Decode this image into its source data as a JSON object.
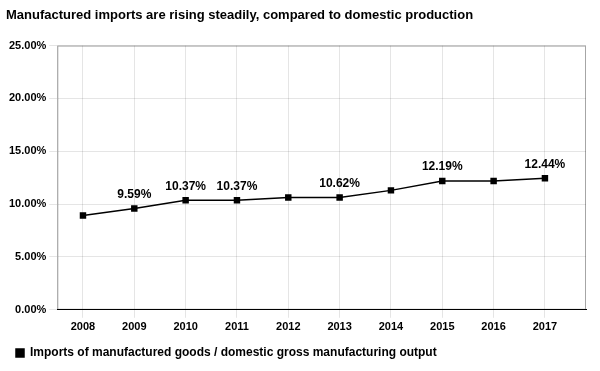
{
  "chart_data": {
    "type": "line",
    "title": "Manufactured imports are rising steadily, compared to domestic production",
    "x": [
      2008,
      2009,
      2010,
      2011,
      2012,
      2013,
      2014,
      2015,
      2016,
      2017
    ],
    "series": [
      {
        "name": "Imports of manufactured goods / domestic gross manufacturing output",
        "color": "#000000",
        "marker": "square",
        "values": [
          0.0893,
          0.0959,
          0.1037,
          0.1037,
          0.1062,
          0.1062,
          0.113,
          0.1219,
          0.1219,
          0.1244
        ]
      }
    ],
    "annotations": [
      {
        "x": 2009,
        "y": 0.0959,
        "label": "9.59%"
      },
      {
        "x": 2010,
        "y": 0.1037,
        "label": "10.37%"
      },
      {
        "x": 2011,
        "y": 0.1037,
        "label": "10.37%"
      },
      {
        "x": 2013,
        "y": 0.1062,
        "label": "10.62%"
      },
      {
        "x": 2015,
        "y": 0.1219,
        "label": "12.19%"
      },
      {
        "x": 2017,
        "y": 0.1244,
        "label": "12.44%"
      }
    ],
    "xlim": [
      2007.5,
      2017.8
    ],
    "xticks": [
      2008,
      2009,
      2010,
      2011,
      2012,
      2013,
      2014,
      2015,
      2016,
      2017
    ],
    "ylim": [
      0.0,
      0.25
    ],
    "yticks": [
      {
        "value": 0.0,
        "label": "0.00%"
      },
      {
        "value": 0.05,
        "label": "5.00%"
      },
      {
        "value": 0.1,
        "label": "10.00%"
      },
      {
        "value": 0.15,
        "label": "15.00%"
      },
      {
        "value": 0.2,
        "label": "20.00%"
      },
      {
        "value": 0.25,
        "label": "25.00%"
      }
    ],
    "grid": true,
    "legend": "lower left"
  }
}
